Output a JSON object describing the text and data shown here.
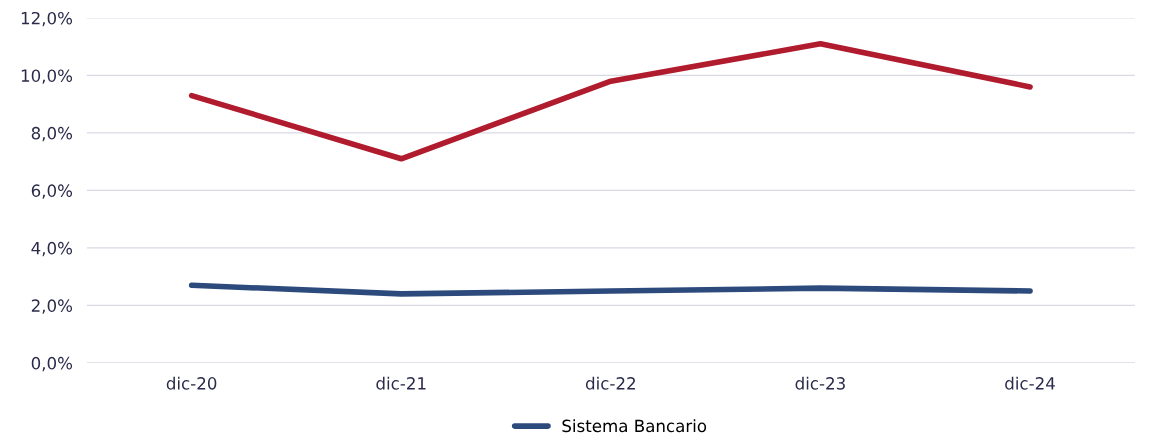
{
  "chart_data": {
    "type": "line",
    "categories": [
      "dic-20",
      "dic-21",
      "dic-22",
      "dic-23",
      "dic-24"
    ],
    "series": [
      {
        "color": "#b01c2e",
        "values": [
          9.3,
          7.1,
          9.8,
          11.1,
          9.6
        ]
      },
      {
        "name": "Sistema Bancario",
        "color": "#2c4a7c",
        "values": [
          2.7,
          2.4,
          2.5,
          2.6,
          2.5
        ]
      }
    ],
    "ylim": [
      0,
      12
    ],
    "yticks": [
      {
        "value": 0,
        "label": "0,0%"
      },
      {
        "value": 2,
        "label": "2,0%"
      },
      {
        "value": 4,
        "label": "4,0%"
      },
      {
        "value": 6,
        "label": "6,0%"
      },
      {
        "value": 8,
        "label": "8,0%"
      },
      {
        "value": 10,
        "label": "10,0%"
      },
      {
        "value": 12,
        "label": "12,0%"
      }
    ],
    "grid": "y",
    "legend": "bottom",
    "marker": "none",
    "line_style": "solid"
  }
}
